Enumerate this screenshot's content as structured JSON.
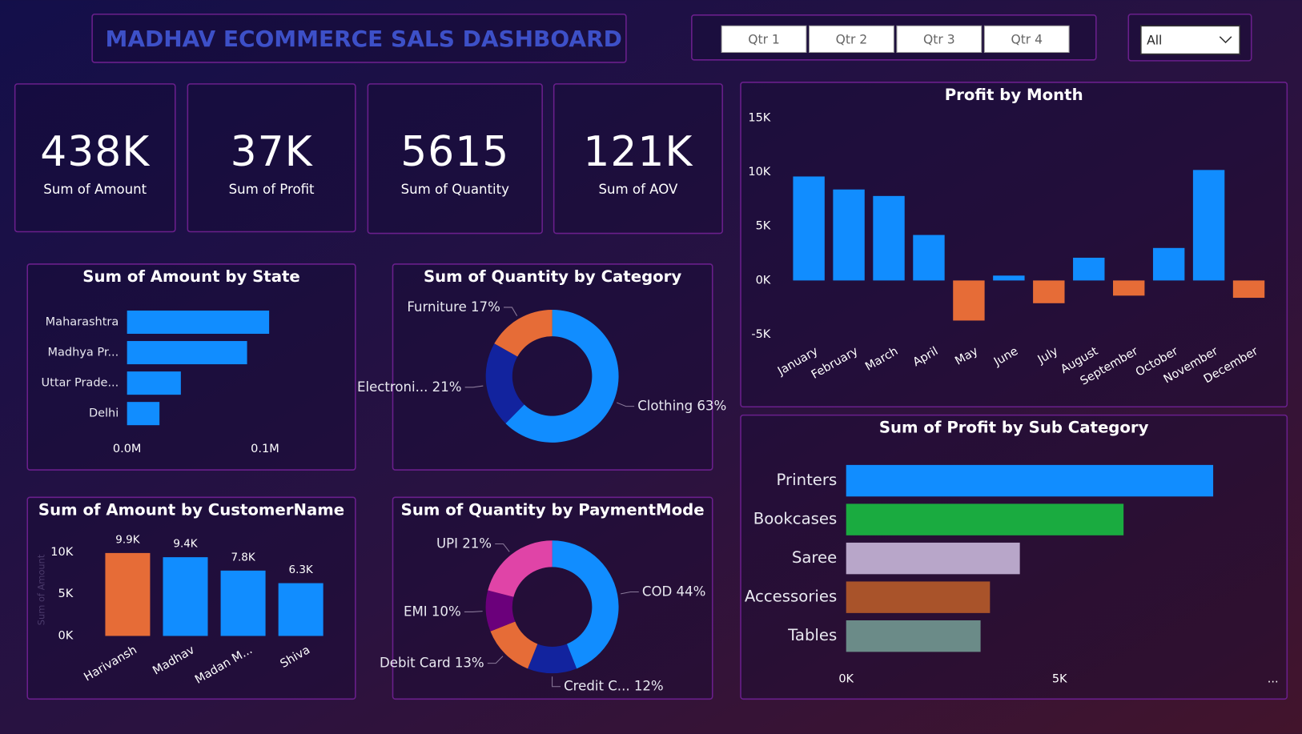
{
  "header": {
    "title": "MADHAV ECOMMERCE SALS DASHBOARD"
  },
  "slicers": {
    "quarters": [
      "Qtr 1",
      "Qtr 2",
      "Qtr 3",
      "Qtr 4"
    ],
    "dropdown": "All"
  },
  "kpis": [
    {
      "value": "438K",
      "label": "Sum of Amount"
    },
    {
      "value": "37K",
      "label": "Sum of Profit"
    },
    {
      "value": "5615",
      "label": "Sum of Quantity"
    },
    {
      "value": "121K",
      "label": "Sum of AOV"
    }
  ],
  "chart_data": [
    {
      "type": "hbar",
      "title": "Sum of Amount by State",
      "categories": [
        "Maharashtra",
        "Madhya Pr...",
        "Uttar Prade...",
        "Delhi"
      ],
      "values": [
        103000,
        87000,
        39000,
        23500
      ],
      "color": "#118dff",
      "xlim": [
        0,
        130000
      ],
      "xticks": [
        {
          "value": 0,
          "label": "0.0M"
        },
        {
          "value": 100000,
          "label": "0.1M"
        }
      ]
    },
    {
      "type": "donut",
      "title": "Sum of Quantity by Category",
      "categories": [
        "Clothing",
        "Electroni...",
        "Furniture"
      ],
      "values": [
        63,
        21,
        17
      ],
      "value_labels": [
        "63%",
        "21%",
        "17%"
      ],
      "colors": [
        "#118dff",
        "#12239e",
        "#e66c37"
      ]
    },
    {
      "type": "bar",
      "title": "Sum of Amount by CustomerName",
      "ylabel": "Sum of Amount",
      "categories": [
        "Harivansh",
        "Madhav",
        "Madan M...",
        "Shiva"
      ],
      "values": [
        9900,
        9400,
        7800,
        6300
      ],
      "value_labels": [
        "9.9K",
        "9.4K",
        "7.8K",
        "6.3K"
      ],
      "colors": [
        "#e66c37",
        "#118dff",
        "#118dff",
        "#118dff"
      ],
      "ylim": [
        0,
        11000
      ],
      "yticks": [
        {
          "value": 0,
          "label": "0K"
        },
        {
          "value": 5000,
          "label": "5K"
        },
        {
          "value": 10000,
          "label": "10K"
        }
      ]
    },
    {
      "type": "donut",
      "title": "Sum of Quantity by PaymentMode",
      "categories": [
        "COD",
        "Credit C...",
        "Debit Card",
        "EMI",
        "UPI"
      ],
      "values": [
        44,
        12,
        13,
        10,
        21
      ],
      "value_labels": [
        "44%",
        "12%",
        "13%",
        "10%",
        "21%"
      ],
      "colors": [
        "#118dff",
        "#12239e",
        "#e66c37",
        "#6b007b",
        "#e044a7"
      ]
    },
    {
      "type": "bar",
      "title": "Profit by Month",
      "categories": [
        "January",
        "February",
        "March",
        "April",
        "May",
        "June",
        "July",
        "August",
        "September",
        "October",
        "November",
        "December"
      ],
      "values": [
        9600,
        8400,
        7800,
        4200,
        -3700,
        450,
        -2100,
        2100,
        -1400,
        3000,
        10200,
        -1600
      ],
      "color": "#118dff",
      "negative_color": "#e66c37",
      "ylim": [
        -5000,
        15000
      ],
      "yticks": [
        {
          "value": -5000,
          "label": "-5K"
        },
        {
          "value": 0,
          "label": "0K"
        },
        {
          "value": 5000,
          "label": "5K"
        },
        {
          "value": 10000,
          "label": "10K"
        },
        {
          "value": 15000,
          "label": "15K"
        }
      ]
    },
    {
      "type": "hbar",
      "title": "Sum of Profit by Sub Category",
      "categories": [
        "Printers",
        "Bookcases",
        "Saree",
        "Accessories",
        "Tables"
      ],
      "values": [
        8600,
        6500,
        4070,
        3370,
        3150
      ],
      "colors": [
        "#118dff",
        "#1aab40",
        "#b8a6c9",
        "#a9532a",
        "#6b8b88"
      ],
      "xlim": [
        0,
        10000
      ],
      "xticks": [
        {
          "value": 0,
          "label": "0K"
        },
        {
          "value": 5000,
          "label": "5K"
        },
        {
          "value": 10000,
          "label": "..."
        }
      ]
    }
  ]
}
